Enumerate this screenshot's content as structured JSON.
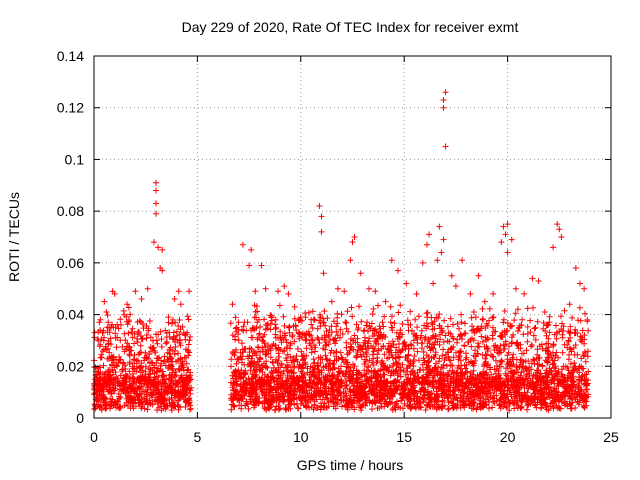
{
  "chart_data": {
    "type": "scatter",
    "title": "Day 229 of 2020, Rate Of TEC Index for receiver exmt",
    "xlabel": "GPS time / hours",
    "ylabel": "ROTI / TECUs",
    "xlim": [
      0,
      25
    ],
    "ylim": [
      0,
      0.14
    ],
    "x_ticks": [
      "0",
      "5",
      "10",
      "15",
      "20",
      "25"
    ],
    "y_ticks": [
      "0",
      "0.02",
      "0.04",
      "0.06",
      "0.08",
      "0.1",
      "0.12",
      "0.14"
    ],
    "grid": true,
    "marker": "+",
    "marker_color": "#ff0000",
    "data_gaps_hours": [
      [
        4.8,
        6.6
      ]
    ],
    "series": [
      {
        "points": [
          [
            0.1,
            0.018
          ],
          [
            0.3,
            0.034
          ],
          [
            0.5,
            0.045
          ],
          [
            0.6,
            0.041
          ],
          [
            0.9,
            0.049
          ],
          [
            1.0,
            0.048
          ],
          [
            1.3,
            0.036
          ],
          [
            1.6,
            0.044
          ],
          [
            2.0,
            0.049
          ],
          [
            2.3,
            0.046
          ],
          [
            2.6,
            0.05
          ],
          [
            2.9,
            0.068
          ],
          [
            3.0,
            0.079
          ],
          [
            3.0,
            0.083
          ],
          [
            3.0,
            0.088
          ],
          [
            3.0,
            0.091
          ],
          [
            3.1,
            0.066
          ],
          [
            3.2,
            0.058
          ],
          [
            3.3,
            0.057
          ],
          [
            3.3,
            0.065
          ],
          [
            3.6,
            0.039
          ],
          [
            3.9,
            0.046
          ],
          [
            4.1,
            0.049
          ],
          [
            4.2,
            0.044
          ],
          [
            4.4,
            0.032
          ],
          [
            4.6,
            0.049
          ],
          [
            6.7,
            0.044
          ],
          [
            6.9,
            0.035
          ],
          [
            7.2,
            0.067
          ],
          [
            7.5,
            0.059
          ],
          [
            7.6,
            0.065
          ],
          [
            7.8,
            0.049
          ],
          [
            8.1,
            0.059
          ],
          [
            8.3,
            0.05
          ],
          [
            8.6,
            0.039
          ],
          [
            8.9,
            0.049
          ],
          [
            9.2,
            0.051
          ],
          [
            9.4,
            0.048
          ],
          [
            9.7,
            0.043
          ],
          [
            10.2,
            0.032
          ],
          [
            10.5,
            0.038
          ],
          [
            10.9,
            0.082
          ],
          [
            11.0,
            0.078
          ],
          [
            11.0,
            0.072
          ],
          [
            11.1,
            0.056
          ],
          [
            11.5,
            0.045
          ],
          [
            11.8,
            0.05
          ],
          [
            12.1,
            0.049
          ],
          [
            12.4,
            0.061
          ],
          [
            12.5,
            0.068
          ],
          [
            12.6,
            0.07
          ],
          [
            12.9,
            0.056
          ],
          [
            13.3,
            0.05
          ],
          [
            13.6,
            0.049
          ],
          [
            14.1,
            0.045
          ],
          [
            14.4,
            0.061
          ],
          [
            14.7,
            0.057
          ],
          [
            15.1,
            0.052
          ],
          [
            15.6,
            0.048
          ],
          [
            15.9,
            0.06
          ],
          [
            16.1,
            0.067
          ],
          [
            16.2,
            0.071
          ],
          [
            16.4,
            0.052
          ],
          [
            16.6,
            0.061
          ],
          [
            16.7,
            0.074
          ],
          [
            16.8,
            0.064
          ],
          [
            16.9,
            0.069
          ],
          [
            16.9,
            0.12
          ],
          [
            16.9,
            0.123
          ],
          [
            17.0,
            0.126
          ],
          [
            17.0,
            0.105
          ],
          [
            17.3,
            0.055
          ],
          [
            17.5,
            0.051
          ],
          [
            17.8,
            0.061
          ],
          [
            18.2,
            0.048
          ],
          [
            18.6,
            0.055
          ],
          [
            18.9,
            0.045
          ],
          [
            19.3,
            0.048
          ],
          [
            19.7,
            0.068
          ],
          [
            19.8,
            0.074
          ],
          [
            19.9,
            0.071
          ],
          [
            20.0,
            0.075
          ],
          [
            20.0,
            0.064
          ],
          [
            20.2,
            0.069
          ],
          [
            20.4,
            0.05
          ],
          [
            20.8,
            0.048
          ],
          [
            21.2,
            0.054
          ],
          [
            21.5,
            0.053
          ],
          [
            21.8,
            0.041
          ],
          [
            22.2,
            0.066
          ],
          [
            22.4,
            0.075
          ],
          [
            22.5,
            0.073
          ],
          [
            22.6,
            0.07
          ],
          [
            23.0,
            0.044
          ],
          [
            23.3,
            0.058
          ],
          [
            23.5,
            0.052
          ],
          [
            23.7,
            0.05
          ],
          [
            23.9,
            0.018
          ]
        ]
      }
    ],
    "density_segments": [
      [
        0.0,
        4.7,
        0.012,
        0.028,
        900
      ],
      [
        6.6,
        23.9,
        0.012,
        0.03,
        3400
      ]
    ]
  }
}
